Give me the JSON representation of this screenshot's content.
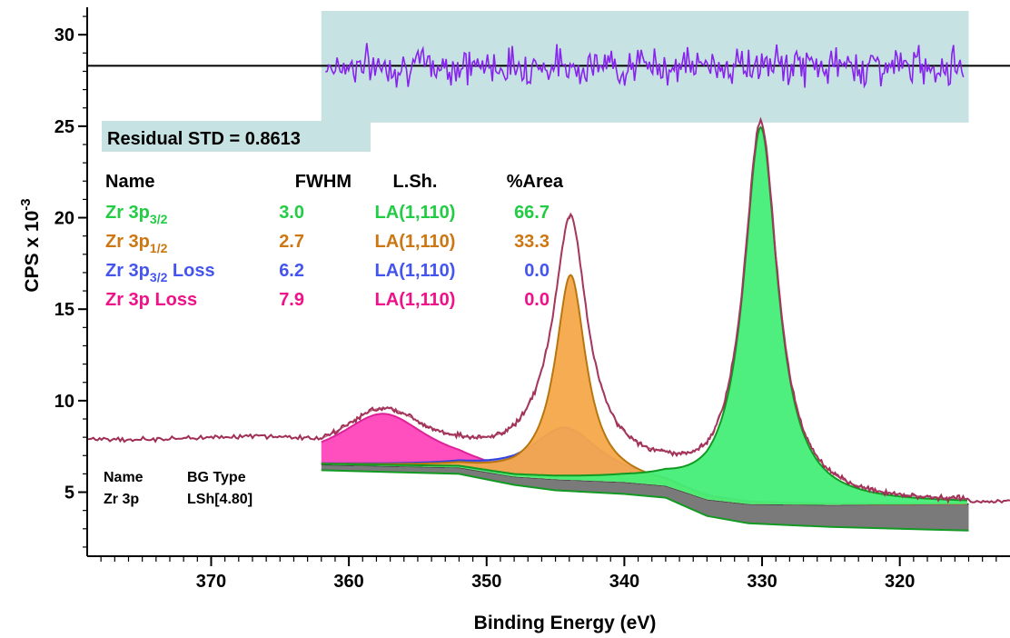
{
  "chart_data": {
    "type": "line",
    "xlabel": "Binding Energy (eV)",
    "ylabel": "CPS x 10",
    "ylabel_exponent": "-3",
    "x_reversed": true,
    "xlim": [
      379,
      312
    ],
    "ylim": [
      1.5,
      31.5
    ],
    "x_ticks": [
      370,
      360,
      350,
      340,
      330,
      320
    ],
    "y_ticks": [
      5,
      10,
      15,
      20,
      25,
      30
    ],
    "residual": {
      "label": "Residual STD = 0.8613",
      "x_range": [
        362,
        315
      ],
      "box_y_range": [
        25.2,
        31.3
      ],
      "baseline_y": 28.3,
      "std": 0.8613
    },
    "legend": {
      "headers": {
        "name": "Name",
        "fwhm": "FWHM",
        "lsh": "L.Sh.",
        "area": "%Area"
      },
      "components": [
        {
          "name_base": "Zr 3p",
          "name_sub": "3/2",
          "name_suffix": "",
          "fwhm": "3.0",
          "lsh": "LA(1,110)",
          "area": "66.7",
          "color": "#22cc44"
        },
        {
          "name_base": "Zr 3p",
          "name_sub": "1/2",
          "name_suffix": "",
          "fwhm": "2.7",
          "lsh": "LA(1,110)",
          "area": "33.3",
          "color": "#cc7711"
        },
        {
          "name_base": "Zr 3p",
          "name_sub": "3/2",
          "name_suffix": " Loss",
          "fwhm": "6.2",
          "lsh": "LA(1,110)",
          "area": "0.0",
          "color": "#4455ee"
        },
        {
          "name_base": "Zr 3p Loss",
          "name_sub": "",
          "name_suffix": "",
          "fwhm": "7.9",
          "lsh": "LA(1,110)",
          "area": "0.0",
          "color": "#ee1188"
        }
      ]
    },
    "background": {
      "headers": {
        "name": "Name",
        "type": "BG Type"
      },
      "name": "Zr 3p",
      "type": "LSh[4.80]",
      "upper": [
        [
          362,
          6.5
        ],
        [
          352,
          6.35
        ],
        [
          348,
          5.85
        ],
        [
          345,
          5.7
        ],
        [
          340,
          5.55
        ],
        [
          337,
          5.35
        ],
        [
          334,
          4.6
        ],
        [
          331,
          4.35
        ],
        [
          325,
          4.3
        ],
        [
          315,
          4.35
        ]
      ],
      "lower": [
        [
          362,
          6.2
        ],
        [
          352,
          6.0
        ],
        [
          348,
          5.4
        ],
        [
          345,
          5.1
        ],
        [
          340,
          4.9
        ],
        [
          337,
          4.7
        ],
        [
          334,
          3.7
        ],
        [
          331,
          3.3
        ],
        [
          325,
          3.1
        ],
        [
          315,
          2.9
        ]
      ]
    },
    "peaks": [
      {
        "center": 357.5,
        "height": 2.85,
        "fwhm": 7.9,
        "fill": "#ff44bb",
        "stroke": "#dd2299"
      },
      {
        "center": 344.3,
        "height": 2.85,
        "fwhm": 6.2,
        "fill": "#7777ee",
        "stroke": "#3344dd"
      },
      {
        "center": 343.9,
        "height": 11.2,
        "fwhm": 2.7,
        "fill": "#f5a84a",
        "stroke": "#b8760e"
      },
      {
        "center": 330.1,
        "height": 20.6,
        "fwhm": 3.0,
        "fill": "#44ee77",
        "stroke": "#119922"
      }
    ],
    "envelope_color": "#a83c64",
    "raw_color": "#a02e55",
    "residual_color": "#8822ee",
    "pre_region": {
      "x_range": [
        379,
        362
      ],
      "level": 8.0
    },
    "post_region": {
      "x_range": [
        315,
        312
      ],
      "level": 4.5
    }
  }
}
